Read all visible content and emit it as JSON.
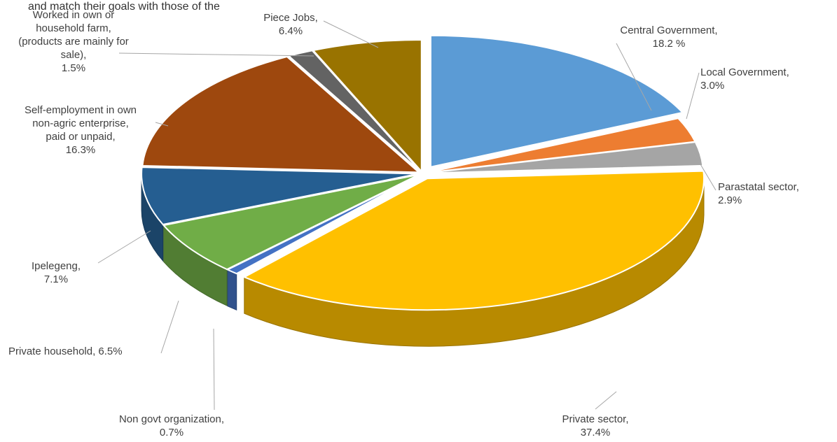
{
  "header_fragment": "and match their goals with those of the",
  "chart_data": {
    "type": "pie",
    "title": "",
    "slices": [
      {
        "label": "Central Government",
        "value": 18.2,
        "display": "18.2 %",
        "color": "#5b9bd5"
      },
      {
        "label": "Local Government",
        "value": 3.0,
        "display": "3.0%",
        "color": "#ed7d31"
      },
      {
        "label": "Parastatal sector",
        "value": 2.9,
        "display": "2.9%",
        "color": "#a5a5a5"
      },
      {
        "label": "Private sector",
        "value": 37.4,
        "display": "37.4%",
        "color": "#ffc000"
      },
      {
        "label": "Non govt organization",
        "value": 0.7,
        "display": "0.7%",
        "color": "#4472c4"
      },
      {
        "label": "Private household",
        "value": 6.5,
        "display": "6.5%",
        "color": "#70ad47"
      },
      {
        "label": "Ipelegeng",
        "value": 7.1,
        "display": "7.1%",
        "color": "#255e91"
      },
      {
        "label": "Self-employment in own non-agric enterprise, paid or unpaid",
        "value": 16.3,
        "display": "16.3%",
        "color": "#9e480e"
      },
      {
        "label": "Worked in own or household farm, (products are mainly for sale)",
        "value": 1.5,
        "display": "1.5%",
        "color": "#636363"
      },
      {
        "label": "Piece Jobs",
        "value": 6.4,
        "display": "6.4%",
        "color": "#997300"
      }
    ]
  }
}
